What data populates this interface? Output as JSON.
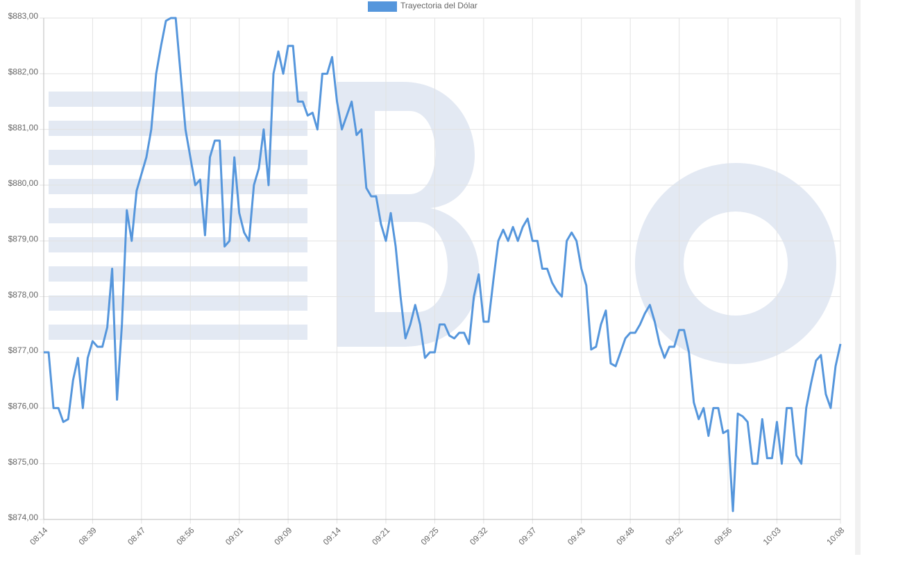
{
  "chart_data": {
    "type": "line",
    "categories": [
      "08:14",
      null,
      null,
      null,
      null,
      null,
      null,
      null,
      null,
      null,
      "08:39",
      null,
      null,
      null,
      null,
      null,
      null,
      null,
      null,
      null,
      "08:47",
      null,
      null,
      null,
      null,
      null,
      null,
      null,
      null,
      null,
      "08:56",
      null,
      null,
      null,
      null,
      null,
      null,
      null,
      null,
      null,
      "09:01",
      null,
      null,
      null,
      null,
      null,
      null,
      null,
      null,
      null,
      "09:09",
      null,
      null,
      null,
      null,
      null,
      null,
      null,
      null,
      null,
      "09:14",
      null,
      null,
      null,
      null,
      null,
      null,
      null,
      null,
      null,
      "09:21",
      null,
      null,
      null,
      null,
      null,
      null,
      null,
      null,
      null,
      "09:25",
      null,
      null,
      null,
      null,
      null,
      null,
      null,
      null,
      null,
      "09:32",
      null,
      null,
      null,
      null,
      null,
      null,
      null,
      null,
      null,
      "09:37",
      null,
      null,
      null,
      null,
      null,
      null,
      null,
      null,
      null,
      "09:43",
      null,
      null,
      null,
      null,
      null,
      null,
      null,
      null,
      null,
      "09:48",
      null,
      null,
      null,
      null,
      null,
      null,
      null,
      null,
      null,
      "09:52",
      null,
      null,
      null,
      null,
      null,
      null,
      null,
      null,
      null,
      "09:56",
      null,
      null,
      null,
      null,
      null,
      null,
      null,
      null,
      null,
      "10:03",
      null,
      null,
      null,
      null,
      null,
      null,
      null,
      null,
      null,
      null,
      null,
      null,
      "10:08"
    ],
    "series": [
      {
        "name": "Trayectoria del Dólar",
        "color": "#5596dc",
        "values": [
          877.0,
          877.0,
          876.0,
          876.0,
          875.75,
          875.8,
          876.5,
          876.9,
          876.0,
          876.9,
          877.2,
          877.1,
          877.1,
          877.45,
          878.5,
          876.15,
          877.5,
          879.55,
          879.0,
          879.9,
          880.2,
          880.5,
          881.0,
          882.0,
          882.5,
          882.95,
          883.0,
          883.0,
          882.0,
          881.0,
          880.5,
          880.0,
          880.1,
          879.1,
          880.5,
          880.8,
          880.8,
          878.9,
          879.0,
          880.5,
          879.5,
          879.15,
          879.0,
          880.0,
          880.3,
          881.0,
          880.0,
          882.0,
          882.4,
          882.0,
          882.5,
          882.5,
          881.5,
          881.5,
          881.25,
          881.3,
          881.0,
          882.0,
          882.0,
          882.3,
          881.5,
          881.0,
          881.25,
          881.5,
          880.9,
          881.0,
          879.95,
          879.8,
          879.8,
          879.3,
          879.0,
          879.5,
          878.9,
          878.0,
          877.25,
          877.5,
          877.85,
          877.5,
          876.9,
          877.0,
          877.0,
          877.5,
          877.5,
          877.3,
          877.25,
          877.35,
          877.35,
          877.15,
          878.0,
          878.4,
          877.55,
          877.55,
          878.3,
          879.0,
          879.2,
          879.0,
          879.25,
          879.0,
          879.25,
          879.4,
          879.0,
          879.0,
          878.5,
          878.5,
          878.25,
          878.1,
          878.0,
          879.0,
          879.15,
          879.0,
          878.5,
          878.2,
          877.05,
          877.1,
          877.5,
          877.75,
          876.8,
          876.75,
          877.0,
          877.25,
          877.35,
          877.35,
          877.5,
          877.7,
          877.85,
          877.55,
          877.15,
          876.9,
          877.1,
          877.1,
          877.4,
          877.4,
          877.0,
          876.1,
          875.8,
          876.0,
          875.5,
          876.0,
          876.0,
          875.55,
          875.6,
          874.15,
          875.9,
          875.85,
          875.75,
          875.0,
          875.0,
          875.8,
          875.1,
          875.1,
          875.75,
          875.0,
          876.0,
          876.0,
          875.15,
          875.0,
          876.0,
          876.45,
          876.85,
          876.95,
          876.25,
          876.0,
          876.75,
          877.15
        ]
      }
    ],
    "ylim": [
      874,
      883
    ],
    "yticks": [
      {
        "value": 874,
        "label": "$874,00"
      },
      {
        "value": 875,
        "label": "$875,00"
      },
      {
        "value": 876,
        "label": "$876,00"
      },
      {
        "value": 877,
        "label": "$877,00"
      },
      {
        "value": 878,
        "label": "$878,00"
      },
      {
        "value": 879,
        "label": "$879,00"
      },
      {
        "value": 880,
        "label": "$880,00"
      },
      {
        "value": 881,
        "label": "$881,00"
      },
      {
        "value": 882,
        "label": "$882,00"
      },
      {
        "value": 883,
        "label": "$883,00"
      }
    ],
    "grid": true,
    "legend": "top"
  }
}
